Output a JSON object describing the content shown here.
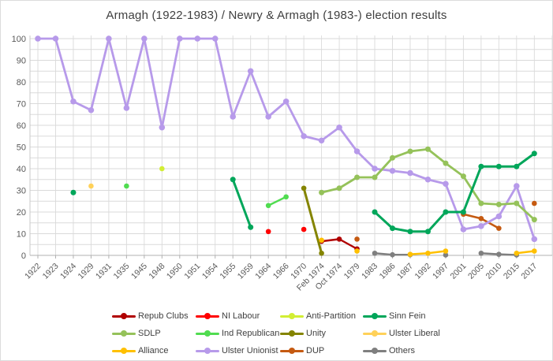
{
  "title": "Armagh (1922-1983) / Newry & Armagh (1983-) election results",
  "chart_data": {
    "type": "line",
    "title": "Armagh (1922-1983) / Newry & Armagh (1983-) election results",
    "xlabel": "",
    "ylabel": "",
    "ylim": [
      0,
      100
    ],
    "y_tick_step": 10,
    "y_minor_gridline_step": 5,
    "grid": true,
    "legend_position": "bottom",
    "axis_label_color": "#595959",
    "gridline_color": "#dadada",
    "categories": [
      "1922",
      "1923",
      "1924",
      "1929",
      "1931",
      "1935",
      "1945",
      "1948",
      "1950",
      "1951",
      "1954",
      "1955",
      "1959",
      "1964",
      "1966",
      "1970",
      "Feb 1974",
      "Oct 1974",
      "1979",
      "1983",
      "1986",
      "1987",
      "1992",
      "1997",
      "2001",
      "2005",
      "2010",
      "2015",
      "2017"
    ],
    "series": [
      {
        "name": "Repub Clubs",
        "color": "#b00000",
        "values": [
          null,
          null,
          null,
          null,
          null,
          null,
          null,
          null,
          null,
          null,
          null,
          null,
          null,
          null,
          null,
          null,
          6.5,
          7.5,
          3,
          null,
          null,
          null,
          null,
          null,
          null,
          null,
          null,
          null,
          null
        ]
      },
      {
        "name": "NI Labour",
        "color": "#ff0000",
        "values": [
          null,
          null,
          null,
          null,
          null,
          null,
          null,
          null,
          null,
          null,
          null,
          null,
          null,
          11,
          null,
          12,
          null,
          null,
          null,
          null,
          null,
          null,
          null,
          null,
          null,
          null,
          null,
          null,
          null
        ]
      },
      {
        "name": "Anti-Partition",
        "color": "#d2ee34",
        "values": [
          null,
          null,
          null,
          null,
          null,
          null,
          null,
          40,
          null,
          null,
          null,
          null,
          null,
          null,
          null,
          null,
          null,
          null,
          null,
          null,
          null,
          null,
          null,
          null,
          null,
          null,
          null,
          null,
          null
        ]
      },
      {
        "name": "Sinn Fein",
        "color": "#00a65a",
        "values": [
          null,
          null,
          29,
          null,
          null,
          null,
          null,
          null,
          null,
          null,
          null,
          35,
          13,
          null,
          null,
          null,
          null,
          null,
          null,
          20,
          12.5,
          11,
          11,
          20,
          20,
          41,
          41,
          41,
          47
        ]
      },
      {
        "name": "SDLP",
        "color": "#95c25a",
        "values": [
          null,
          null,
          null,
          null,
          null,
          null,
          null,
          null,
          null,
          null,
          null,
          null,
          null,
          null,
          null,
          null,
          29,
          31,
          36,
          36,
          45,
          48,
          49,
          42.5,
          36.5,
          24,
          23.5,
          24,
          16.5
        ]
      },
      {
        "name": "Ind Republican",
        "color": "#50dc50",
        "values": [
          null,
          null,
          null,
          null,
          null,
          32,
          null,
          null,
          null,
          null,
          null,
          null,
          null,
          23,
          27,
          null,
          null,
          null,
          null,
          null,
          null,
          null,
          null,
          null,
          null,
          null,
          null,
          null,
          null
        ]
      },
      {
        "name": "Unity",
        "color": "#848400",
        "values": [
          null,
          null,
          null,
          null,
          null,
          null,
          null,
          null,
          null,
          null,
          null,
          null,
          null,
          null,
          null,
          31,
          1,
          null,
          null,
          null,
          null,
          null,
          null,
          null,
          null,
          null,
          null,
          null,
          null
        ]
      },
      {
        "name": "Ulster Liberal",
        "color": "#ffd159",
        "values": [
          null,
          null,
          null,
          32,
          null,
          null,
          null,
          null,
          null,
          null,
          null,
          null,
          null,
          null,
          null,
          null,
          null,
          null,
          null,
          null,
          null,
          null,
          null,
          null,
          null,
          null,
          null,
          null,
          null
        ]
      },
      {
        "name": "Alliance",
        "color": "#ffc000",
        "values": [
          null,
          null,
          null,
          null,
          null,
          null,
          null,
          null,
          null,
          null,
          null,
          null,
          null,
          null,
          null,
          null,
          7,
          null,
          2,
          null,
          null,
          0.5,
          1,
          2,
          null,
          null,
          null,
          1,
          2
        ]
      },
      {
        "name": "Ulster Unionist",
        "color": "#b79aea",
        "values": [
          100,
          100,
          71,
          67,
          100,
          68,
          100,
          59,
          100,
          100,
          100,
          64,
          85,
          64,
          71,
          55,
          53,
          59,
          48,
          40,
          39,
          38,
          35,
          33,
          12,
          13.5,
          18,
          32,
          7.5
        ]
      },
      {
        "name": "DUP",
        "color": "#c55a11",
        "values": [
          null,
          null,
          null,
          null,
          null,
          null,
          null,
          null,
          null,
          null,
          null,
          null,
          null,
          null,
          null,
          null,
          null,
          null,
          7.5,
          null,
          null,
          null,
          null,
          null,
          19,
          17,
          12.5,
          null,
          24
        ]
      },
      {
        "name": "Others",
        "color": "#7f7f7f",
        "values": [
          null,
          null,
          null,
          null,
          null,
          null,
          null,
          null,
          null,
          null,
          null,
          null,
          null,
          null,
          null,
          null,
          null,
          null,
          null,
          1,
          0.3,
          0.3,
          null,
          0.2,
          null,
          1,
          0.5,
          0.2,
          null
        ]
      }
    ]
  }
}
